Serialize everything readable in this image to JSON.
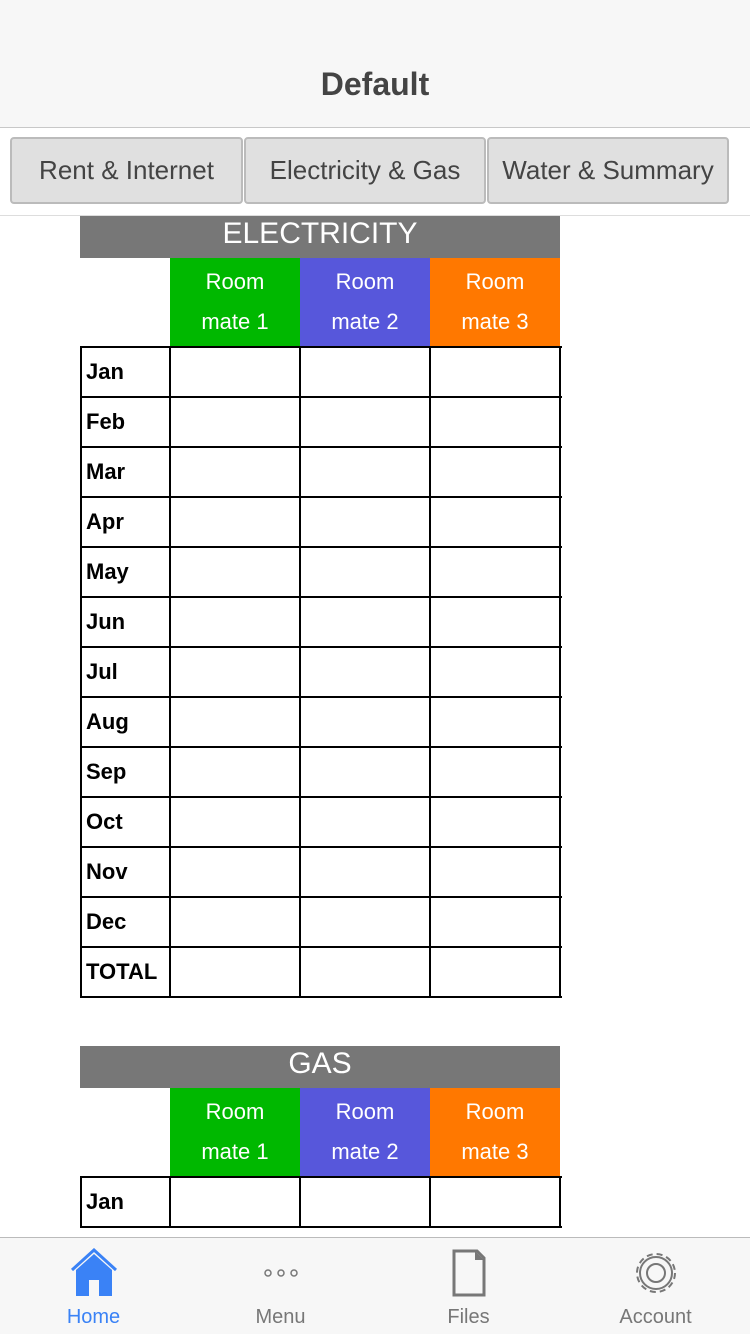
{
  "header": {
    "title": "Default"
  },
  "segments": [
    "Rent & Internet",
    "Electricity & Gas",
    "Water & Summary"
  ],
  "colors": {
    "mate1": "#00b800",
    "mate2": "#5757db",
    "mate3": "#ff7800",
    "title_bar": "#777777",
    "active_tab": "#3a82f6",
    "inactive_tab": "#777777"
  },
  "tables": [
    {
      "title": "ELECTRICITY",
      "columns": [
        [
          "Room",
          "mate 1"
        ],
        [
          "Room",
          "mate 2"
        ],
        [
          "Room",
          "mate 3"
        ]
      ],
      "rows": [
        "Jan",
        "Feb",
        "Mar",
        "Apr",
        "May",
        "Jun",
        "Jul",
        "Aug",
        "Sep",
        "Oct",
        "Nov",
        "Dec",
        "TOTAL"
      ]
    },
    {
      "title": "GAS",
      "columns": [
        [
          "Room",
          "mate 1"
        ],
        [
          "Room",
          "mate 2"
        ],
        [
          "Room",
          "mate 3"
        ]
      ],
      "rows": [
        "Jan"
      ]
    }
  ],
  "tabbar": [
    {
      "label": "Home",
      "icon": "home-icon",
      "active": true
    },
    {
      "label": "Menu",
      "icon": "more-icon"
    },
    {
      "label": "Files",
      "icon": "file-icon"
    },
    {
      "label": "Account",
      "icon": "gear-icon"
    }
  ]
}
